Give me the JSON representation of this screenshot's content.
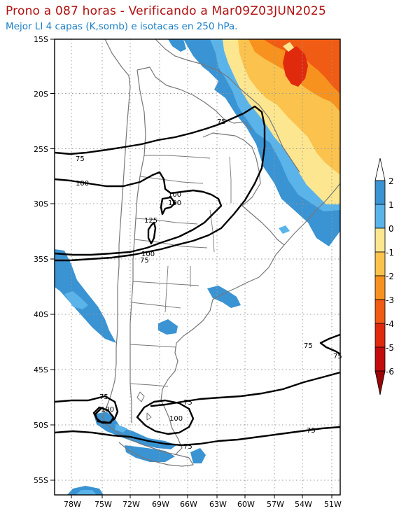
{
  "title": "Prono a 087 horas - Verificando a Mar09Z03JUN2025",
  "subtitle": "Mejor LI 4 capas (K,somb) e isotacas en 250 hPa.",
  "lat_labels": [
    "15S",
    "20S",
    "25S",
    "30S",
    "35S",
    "40S",
    "45S",
    "50S",
    "55S"
  ],
  "lon_labels": [
    "78W",
    "75W",
    "72W",
    "69W",
    "66W",
    "63W",
    "60W",
    "57W",
    "54W",
    "51W"
  ],
  "isotach_labels": [
    "75",
    "75",
    "100",
    "100",
    "100",
    "125",
    "100",
    "75",
    "75",
    "75",
    "75",
    "75",
    "100",
    "75",
    "75"
  ],
  "colorbar": {
    "labels": [
      "2",
      "1",
      "0",
      "-1",
      "-2",
      "-3",
      "-4",
      "-5",
      "-6"
    ],
    "colors": [
      "#3a93d2",
      "#5ab4ea",
      "#fde690",
      "#fbc34d",
      "#f7921f",
      "#f05c14",
      "#e02a0e",
      "#c40c0c",
      "#9a0505"
    ]
  },
  "colors": {
    "li_pos2": "#3a93d2",
    "li_pos1": "#5ab4ea",
    "li_0": "#fde690",
    "li_m1": "#fbc34d",
    "li_m2": "#f7921f",
    "li_m3": "#f05c14",
    "li_m4": "#e02a0e"
  }
}
